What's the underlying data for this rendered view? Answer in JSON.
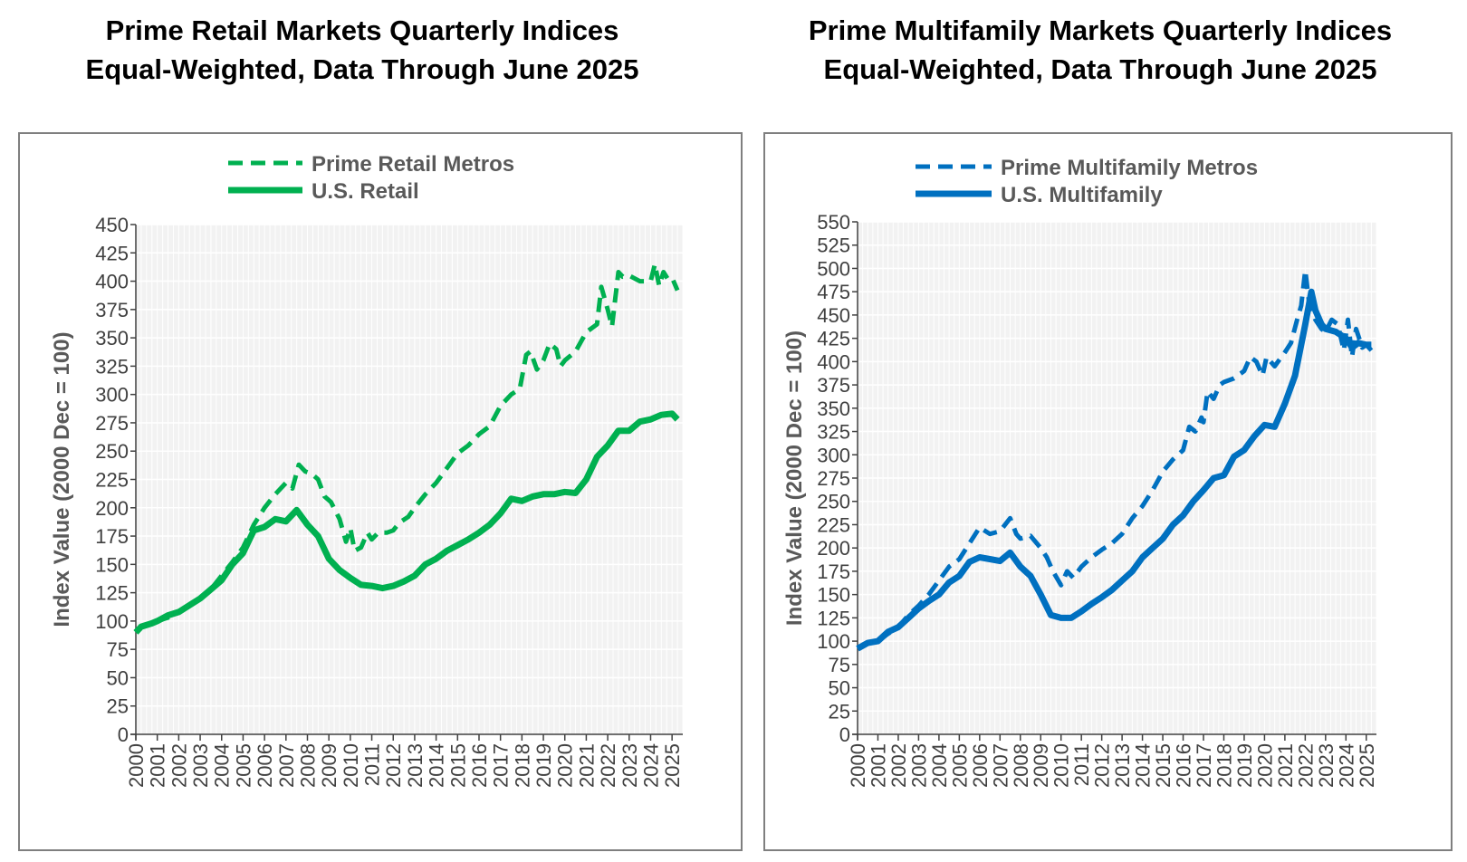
{
  "colors": {
    "retail": "#00b050",
    "multifamily": "#0070c0",
    "plot_bg": "#f2f2f2",
    "grid": "#ffffff",
    "axis": "#404040",
    "text": "#595959"
  },
  "chart_data": [
    {
      "id": "retail",
      "type": "line",
      "title": [
        "Prime Retail Markets Quarterly Indices",
        "Equal-Weighted, Data Through June 2025"
      ],
      "ylabel": "Index Value (2000 Dec = 100)",
      "xlabel": "",
      "ylim": [
        0,
        450
      ],
      "ytick_step": 25,
      "xlim": [
        2000,
        2025.5
      ],
      "x_tick_labels": [
        "2000",
        "2001",
        "2002",
        "2003",
        "2004",
        "2005",
        "2006",
        "2007",
        "2008",
        "2009",
        "2010",
        "2011",
        "2012",
        "2013",
        "2014",
        "2015",
        "2016",
        "2017",
        "2018",
        "2019",
        "2020",
        "2021",
        "2022",
        "2023",
        "2024",
        "2025"
      ],
      "legend": "top-center",
      "series": [
        {
          "name": "Prime Retail Metros",
          "style": "dashed",
          "points": [
            [
              2000,
              90
            ],
            [
              2000.25,
              95
            ],
            [
              2000.75,
              98
            ],
            [
              2001,
              100
            ],
            [
              2001.5,
              103
            ],
            [
              2002,
              108
            ],
            [
              2002.5,
              113
            ],
            [
              2003,
              120
            ],
            [
              2003.5,
              128
            ],
            [
              2004,
              140
            ],
            [
              2004.5,
              152
            ],
            [
              2005,
              165
            ],
            [
              2005.5,
              185
            ],
            [
              2006,
              200
            ],
            [
              2006.5,
              212
            ],
            [
              2007,
              222
            ],
            [
              2007.3,
              217
            ],
            [
              2007.6,
              238
            ],
            [
              2007.9,
              232
            ],
            [
              2008.2,
              230
            ],
            [
              2008.5,
              225
            ],
            [
              2008.8,
              210
            ],
            [
              2009.1,
              205
            ],
            [
              2009.5,
              190
            ],
            [
              2009.8,
              170
            ],
            [
              2010,
              182
            ],
            [
              2010.2,
              162
            ],
            [
              2010.5,
              165
            ],
            [
              2010.8,
              178
            ],
            [
              2011,
              172
            ],
            [
              2011.3,
              178
            ],
            [
              2011.7,
              178
            ],
            [
              2012,
              180
            ],
            [
              2012.3,
              187
            ],
            [
              2012.7,
              192
            ],
            [
              2013,
              200
            ],
            [
              2013.5,
              212
            ],
            [
              2014,
              222
            ],
            [
              2014.5,
              235
            ],
            [
              2015,
              248
            ],
            [
              2015.5,
              255
            ],
            [
              2016,
              265
            ],
            [
              2016.5,
              272
            ],
            [
              2017,
              290
            ],
            [
              2017.5,
              300
            ],
            [
              2017.9,
              305
            ],
            [
              2018.2,
              335
            ],
            [
              2018.4,
              338
            ],
            [
              2018.7,
              322
            ],
            [
              2019,
              330
            ],
            [
              2019.3,
              345
            ],
            [
              2019.6,
              340
            ],
            [
              2019.8,
              325
            ],
            [
              2020,
              330
            ],
            [
              2020.5,
              338
            ],
            [
              2021,
              355
            ],
            [
              2021.5,
              362
            ],
            [
              2021.7,
              395
            ],
            [
              2022,
              375
            ],
            [
              2022.2,
              360
            ],
            [
              2022.5,
              408
            ],
            [
              2022.7,
              404
            ],
            [
              2023,
              405
            ],
            [
              2023.5,
              400
            ],
            [
              2024,
              400
            ],
            [
              2024.2,
              415
            ],
            [
              2024.4,
              396
            ],
            [
              2024.6,
              408
            ],
            [
              2024.8,
              402
            ],
            [
              2025,
              403
            ],
            [
              2025.25,
              392
            ]
          ]
        },
        {
          "name": "U.S. Retail",
          "style": "solid",
          "points": [
            [
              2000,
              90
            ],
            [
              2000.25,
              95
            ],
            [
              2000.75,
              98
            ],
            [
              2001,
              100
            ],
            [
              2001.5,
              105
            ],
            [
              2002,
              108
            ],
            [
              2002.5,
              114
            ],
            [
              2003,
              120
            ],
            [
              2003.5,
              128
            ],
            [
              2004,
              136
            ],
            [
              2004.5,
              150
            ],
            [
              2005,
              160
            ],
            [
              2005.3,
              172
            ],
            [
              2005.5,
              180
            ],
            [
              2006,
              183
            ],
            [
              2006.5,
              190
            ],
            [
              2007,
              188
            ],
            [
              2007.5,
              198
            ],
            [
              2008,
              185
            ],
            [
              2008.5,
              175
            ],
            [
              2009,
              155
            ],
            [
              2009.5,
              145
            ],
            [
              2010,
              138
            ],
            [
              2010.5,
              132
            ],
            [
              2011,
              131
            ],
            [
              2011.5,
              129
            ],
            [
              2012,
              131
            ],
            [
              2012.5,
              135
            ],
            [
              2013,
              140
            ],
            [
              2013.5,
              150
            ],
            [
              2014,
              155
            ],
            [
              2014.5,
              162
            ],
            [
              2015,
              167
            ],
            [
              2015.5,
              172
            ],
            [
              2016,
              178
            ],
            [
              2016.5,
              185
            ],
            [
              2017,
              195
            ],
            [
              2017.5,
              208
            ],
            [
              2018,
              206
            ],
            [
              2018.5,
              210
            ],
            [
              2019,
              212
            ],
            [
              2019.5,
              212
            ],
            [
              2020,
              214
            ],
            [
              2020.5,
              213
            ],
            [
              2021,
              225
            ],
            [
              2021.5,
              245
            ],
            [
              2022,
              255
            ],
            [
              2022.5,
              268
            ],
            [
              2023,
              268
            ],
            [
              2023.5,
              276
            ],
            [
              2024,
              278
            ],
            [
              2024.5,
              282
            ],
            [
              2025,
              283
            ],
            [
              2025.25,
              278
            ]
          ]
        }
      ]
    },
    {
      "id": "multifamily",
      "type": "line",
      "title": [
        "Prime Multifamily Markets Quarterly Indices",
        "Equal-Weighted, Data Through June 2025"
      ],
      "ylabel": "Index Value (2000 Dec = 100)",
      "xlabel": "",
      "ylim": [
        0,
        550
      ],
      "ytick_step": 25,
      "xlim": [
        2000,
        2025.5
      ],
      "x_tick_labels": [
        "2000",
        "2001",
        "2002",
        "2003",
        "2004",
        "2005",
        "2006",
        "2007",
        "2008",
        "2009",
        "2010",
        "2011",
        "2012",
        "2013",
        "2014",
        "2015",
        "2016",
        "2017",
        "2018",
        "2019",
        "2020",
        "2021",
        "2022",
        "2023",
        "2024",
        "2025"
      ],
      "legend": "top-center",
      "series": [
        {
          "name": "Prime Multifamily Metros",
          "style": "dashed",
          "points": [
            [
              2000,
              92
            ],
            [
              2000.5,
              98
            ],
            [
              2001,
              100
            ],
            [
              2001.5,
              108
            ],
            [
              2002,
              115
            ],
            [
              2002.5,
              128
            ],
            [
              2003,
              138
            ],
            [
              2003.5,
              150
            ],
            [
              2004,
              165
            ],
            [
              2004.5,
              180
            ],
            [
              2005,
              188
            ],
            [
              2005.5,
              205
            ],
            [
              2006,
              222
            ],
            [
              2006.5,
              215
            ],
            [
              2007,
              218
            ],
            [
              2007.5,
              232
            ],
            [
              2007.8,
              215
            ],
            [
              2008,
              210
            ],
            [
              2008.5,
              213
            ],
            [
              2009,
              200
            ],
            [
              2009.3,
              190
            ],
            [
              2009.6,
              175
            ],
            [
              2010,
              160
            ],
            [
              2010.3,
              175
            ],
            [
              2010.6,
              168
            ],
            [
              2011,
              180
            ],
            [
              2011.5,
              190
            ],
            [
              2012,
              198
            ],
            [
              2012.5,
              205
            ],
            [
              2013,
              215
            ],
            [
              2013.5,
              232
            ],
            [
              2014,
              245
            ],
            [
              2014.5,
              262
            ],
            [
              2015,
              282
            ],
            [
              2015.5,
              295
            ],
            [
              2016,
              305
            ],
            [
              2016.3,
              330
            ],
            [
              2016.6,
              325
            ],
            [
              2016.9,
              340
            ],
            [
              2017,
              335
            ],
            [
              2017.2,
              368
            ],
            [
              2017.5,
              360
            ],
            [
              2017.8,
              375
            ],
            [
              2018,
              378
            ],
            [
              2018.5,
              382
            ],
            [
              2019,
              390
            ],
            [
              2019.3,
              405
            ],
            [
              2019.6,
              400
            ],
            [
              2019.9,
              385
            ],
            [
              2020.1,
              405
            ],
            [
              2020.5,
              395
            ],
            [
              2021,
              410
            ],
            [
              2021.3,
              420
            ],
            [
              2021.6,
              445
            ],
            [
              2021.8,
              460
            ],
            [
              2022,
              498
            ],
            [
              2022.2,
              462
            ],
            [
              2022.5,
              445
            ],
            [
              2022.8,
              435
            ],
            [
              2023,
              432
            ],
            [
              2023.3,
              445
            ],
            [
              2023.6,
              440
            ],
            [
              2023.9,
              412
            ],
            [
              2024.1,
              445
            ],
            [
              2024.3,
              405
            ],
            [
              2024.5,
              435
            ],
            [
              2024.8,
              415
            ],
            [
              2025,
              418
            ],
            [
              2025.25,
              412
            ]
          ]
        },
        {
          "name": "U.S. Multifamily",
          "style": "solid",
          "points": [
            [
              2000,
              92
            ],
            [
              2000.5,
              98
            ],
            [
              2001,
              100
            ],
            [
              2001.5,
              110
            ],
            [
              2002,
              115
            ],
            [
              2002.5,
              125
            ],
            [
              2003,
              135
            ],
            [
              2003.5,
              143
            ],
            [
              2004,
              150
            ],
            [
              2004.5,
              163
            ],
            [
              2005,
              170
            ],
            [
              2005.5,
              185
            ],
            [
              2006,
              190
            ],
            [
              2006.5,
              188
            ],
            [
              2007,
              186
            ],
            [
              2007.5,
              195
            ],
            [
              2008,
              180
            ],
            [
              2008.5,
              170
            ],
            [
              2009,
              150
            ],
            [
              2009.5,
              128
            ],
            [
              2010,
              125
            ],
            [
              2010.5,
              125
            ],
            [
              2011,
              132
            ],
            [
              2011.5,
              140
            ],
            [
              2012,
              147
            ],
            [
              2012.5,
              155
            ],
            [
              2013,
              165
            ],
            [
              2013.5,
              175
            ],
            [
              2014,
              190
            ],
            [
              2014.5,
              200
            ],
            [
              2015,
              210
            ],
            [
              2015.5,
              225
            ],
            [
              2016,
              235
            ],
            [
              2016.5,
              250
            ],
            [
              2017,
              262
            ],
            [
              2017.5,
              275
            ],
            [
              2018,
              278
            ],
            [
              2018.5,
              298
            ],
            [
              2019,
              305
            ],
            [
              2019.5,
              320
            ],
            [
              2020,
              332
            ],
            [
              2020.5,
              330
            ],
            [
              2021,
              355
            ],
            [
              2021.5,
              385
            ],
            [
              2022,
              440
            ],
            [
              2022.3,
              475
            ],
            [
              2022.5,
              455
            ],
            [
              2022.8,
              440
            ],
            [
              2023,
              435
            ],
            [
              2023.5,
              432
            ],
            [
              2024,
              425
            ],
            [
              2024.3,
              415
            ],
            [
              2024.6,
              420
            ],
            [
              2025,
              418
            ],
            [
              2025.25,
              418
            ]
          ]
        }
      ]
    }
  ]
}
